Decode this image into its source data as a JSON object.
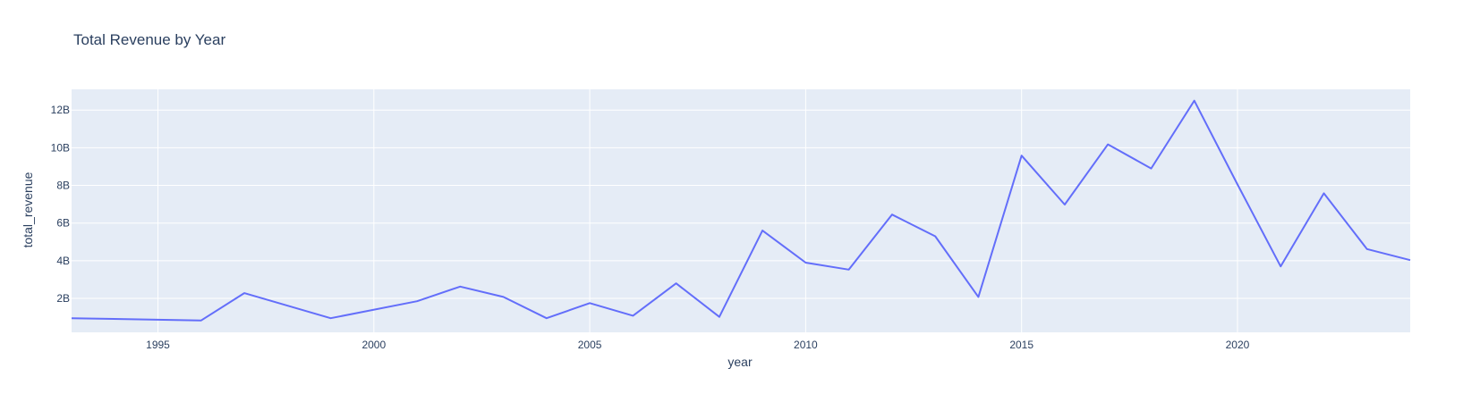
{
  "chart_data": {
    "type": "line",
    "title": "Total Revenue by Year",
    "xlabel": "year",
    "ylabel": "total_revenue",
    "x": [
      1993,
      1996,
      1997,
      1999,
      2001,
      2002,
      2003,
      2004,
      2005,
      2006,
      2007,
      2008,
      2009,
      2010,
      2011,
      2012,
      2013,
      2014,
      2015,
      2016,
      2017,
      2018,
      2019,
      2020,
      2021,
      2022,
      2023,
      2024
    ],
    "series": [
      {
        "values": [
          0.95,
          0.83,
          2.28,
          0.95,
          1.85,
          2.63,
          2.08,
          0.95,
          1.75,
          1.08,
          2.8,
          1.02,
          5.6,
          3.9,
          3.53,
          6.45,
          5.3,
          2.08,
          9.58,
          6.98,
          10.18,
          8.9,
          12.5,
          8.05,
          3.7,
          7.58,
          4.62,
          4.03
        ],
        "color": "#636efa"
      }
    ],
    "xlim": [
      1993,
      2024
    ],
    "ylim": [
      0.2,
      13.1
    ],
    "y_unit_suffix": "B",
    "x_ticks": [
      1995,
      2000,
      2005,
      2010,
      2015,
      2020
    ],
    "y_ticks": [
      2,
      4,
      6,
      8,
      10,
      12
    ],
    "x_tick_labels": [
      "1995",
      "2000",
      "2005",
      "2010",
      "2015",
      "2020"
    ],
    "y_tick_labels": [
      "2B",
      "4B",
      "6B",
      "8B",
      "10B",
      "12B"
    ],
    "grid": true,
    "plot_background": "#e5ecf6",
    "grid_color": "#ffffff",
    "text_color": "#2a3f5f"
  }
}
